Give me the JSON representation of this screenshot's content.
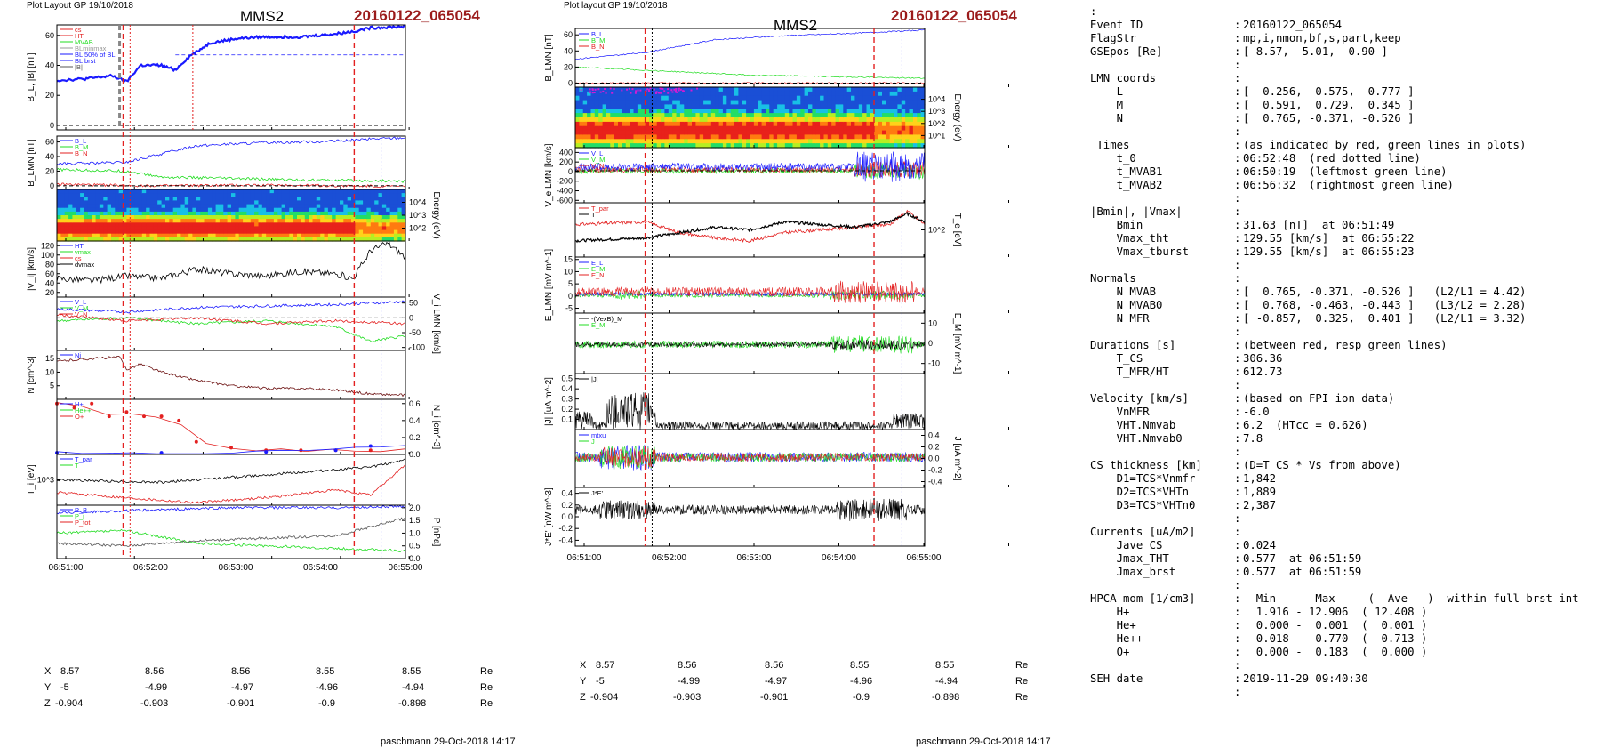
{
  "left_column": {
    "header": "Plot Layout GP 19/10/2018",
    "spacecraft": "MMS2",
    "event": "20160122_065054",
    "footer": "paschmann 29-Oct-2018 14:17",
    "time_ticks": [
      "06:51:00",
      "06:52:00",
      "06:53:00",
      "06:54:00",
      "06:55:00"
    ],
    "position_rows": [
      {
        "label": "X",
        "values": [
          "8.57",
          "8.56",
          "8.56",
          "8.55",
          "8.55"
        ],
        "unit": "Re"
      },
      {
        "label": "Y",
        "values": [
          "-5",
          "-4.99",
          "-4.97",
          "-4.96",
          "-4.94"
        ],
        "unit": "Re"
      },
      {
        "label": "Z",
        "values": [
          "-0.904",
          "-0.903",
          "-0.901",
          "-0.9",
          "-0.898"
        ],
        "unit": "Re"
      }
    ]
  },
  "right_column": {
    "header": "Plot layout GP 19/10/2018",
    "spacecraft": "MMS2",
    "event": "20160122_065054",
    "footer": "paschmann 29-Oct-2018 14:17",
    "time_ticks": [
      "06:51:00",
      "06:52:00",
      "06:53:00",
      "06:54:00",
      "06:55:00"
    ],
    "position_rows": [
      {
        "label": "X",
        "values": [
          "8.57",
          "8.56",
          "8.56",
          "8.55",
          "8.55"
        ],
        "unit": "Re"
      },
      {
        "label": "Y",
        "values": [
          "-5",
          "-4.99",
          "-4.97",
          "-4.96",
          "-4.94"
        ],
        "unit": "Re"
      },
      {
        "label": "Z",
        "values": [
          "-0.904",
          "-0.903",
          "-0.901",
          "-0.9",
          "-0.898"
        ],
        "unit": "Re"
      }
    ]
  },
  "colors": {
    "red": "#e32020",
    "blue": "#1a1aff",
    "green": "#22dd22",
    "black": "#000000",
    "brown": "#6b0f0f",
    "event": "#9b1b1b"
  },
  "chart_data": [
    {
      "type": "line",
      "column": "left",
      "panels": [
        {
          "ylabel": "B_L, |B| [nT]",
          "yticks": [
            "0",
            "20",
            "40",
            "60"
          ],
          "ylim": [
            -3,
            67
          ],
          "legend": [
            "cs",
            "HT",
            "MVAB",
            "BLminmax",
            "BL 50% of BL",
            "BL brst",
            "|B|"
          ],
          "series": [
            {
              "name": "|B|",
              "x": [
                0,
                0.08,
                0.16,
                0.2,
                0.24,
                0.3,
                0.34,
                0.38,
                0.44,
                0.52,
                0.6,
                0.7,
                0.8,
                0.86,
                0.9,
                1.0
              ],
              "y": [
                30,
                31,
                33,
                29,
                40,
                40,
                37,
                46,
                55,
                58,
                59,
                59,
                61,
                63,
                65,
                66
              ]
            }
          ]
        },
        {
          "ylabel": "B_LMN [nT]",
          "yticks": [
            "0",
            "20",
            "40",
            "60"
          ],
          "ylim": [
            -5,
            68
          ],
          "legend": [
            "B_L",
            "B_M",
            "B_N"
          ],
          "series": [
            {
              "name": "B_L",
              "x": [
                0,
                0.2,
                0.25,
                0.4,
                0.6,
                0.8,
                0.9,
                1.0
              ],
              "y": [
                30,
                32,
                38,
                55,
                59,
                61,
                64,
                66
              ]
            },
            {
              "name": "B_M",
              "x": [
                0,
                0.2,
                0.3,
                0.5,
                0.7,
                0.9,
                1.0
              ],
              "y": [
                22,
                20,
                12,
                10,
                8,
                7,
                6
              ]
            },
            {
              "name": "B_N",
              "x": [
                0,
                0.3,
                0.6,
                1.0
              ],
              "y": [
                2,
                0,
                1,
                -1
              ]
            }
          ]
        },
        {
          "type": "heatmap",
          "ylabel": "Energy (eV)",
          "yticks": [
            "10^2",
            "10^3",
            "10^4"
          ]
        },
        {
          "ylabel": "|V_i| [km/s]",
          "yticks": [
            "20",
            "40",
            "60",
            "80",
            "100",
            "120"
          ],
          "ylim": [
            10,
            130
          ],
          "legend": [
            "HT",
            "vmax",
            "cs",
            "dvmax"
          ],
          "series": [
            {
              "name": "|V_i|",
              "x": [
                0,
                0.1,
                0.2,
                0.3,
                0.4,
                0.5,
                0.6,
                0.7,
                0.8,
                0.85,
                0.9,
                0.95,
                1.0
              ],
              "y": [
                50,
                45,
                55,
                50,
                70,
                60,
                55,
                65,
                60,
                50,
                110,
                125,
                95
              ]
            }
          ]
        },
        {
          "ylabel": "V_i LMN [km/s]",
          "yticks": [
            "-100",
            "-50",
            "0",
            "50"
          ],
          "ylim": [
            -110,
            70
          ],
          "legend": [
            "V_L",
            "V_M",
            "V_N"
          ],
          "series": [
            {
              "name": "V_L",
              "x": [
                0,
                0.2,
                0.4,
                0.6,
                0.8,
                1.0
              ],
              "y": [
                30,
                20,
                35,
                40,
                45,
                55
              ]
            },
            {
              "name": "V_M",
              "x": [
                0,
                0.2,
                0.4,
                0.6,
                0.8,
                0.9,
                1.0
              ],
              "y": [
                -10,
                0,
                -20,
                -10,
                -30,
                -80,
                -60
              ]
            },
            {
              "name": "V_N",
              "x": [
                0,
                0.2,
                0.4,
                0.6,
                0.8,
                1.0
              ],
              "y": [
                10,
                -10,
                0,
                -20,
                -10,
                -20
              ]
            }
          ]
        },
        {
          "ylabel": "N [cm^-3]",
          "yticks": [
            "5",
            "10",
            "15"
          ],
          "ylim": [
            0,
            18
          ],
          "legend": [
            "Ni"
          ],
          "series": [
            {
              "name": "Ni",
              "x": [
                0,
                0.1,
                0.18,
                0.2,
                0.24,
                0.3,
                0.4,
                0.5,
                0.6,
                0.7,
                0.8,
                0.9,
                1.0
              ],
              "y": [
                14,
                15,
                15.5,
                11,
                13,
                10,
                7,
                5,
                4,
                4,
                3.5,
                2,
                1.5
              ]
            }
          ]
        },
        {
          "ylabel": "N_i [cm^-3]",
          "yticks": [
            "0.0",
            "0.2",
            "0.4",
            "0.6"
          ],
          "ylim": [
            0,
            0.65
          ],
          "legend": [
            "H+",
            "He++",
            "O+"
          ],
          "series": [
            {
              "name": "He++",
              "x": [
                0,
                0.05,
                0.1,
                0.15,
                0.2,
                0.25,
                0.3,
                0.35,
                0.4,
                0.5,
                0.6,
                0.7,
                0.8,
                0.9
              ],
              "y": [
                0.6,
                0.55,
                0.6,
                0.45,
                0.5,
                0.45,
                0.45,
                0.4,
                0.15,
                0.08,
                0.05,
                0.05,
                0.05,
                0.05
              ]
            },
            {
              "name": "O+",
              "x": [
                0,
                0.3,
                0.6,
                0.8,
                0.9
              ],
              "y": [
                0.02,
                0.02,
                0.03,
                0.05,
                0.1
              ]
            }
          ]
        },
        {
          "ylabel": "T_i [eV]",
          "yticks": [
            "10^3"
          ],
          "ylim": [
            0,
            1
          ],
          "legend": [
            "T_par",
            "T"
          ],
          "series": [
            {
              "name": "T",
              "x": [
                0,
                0.3,
                0.6,
                0.9,
                1.0
              ],
              "y": [
                0.5,
                0.45,
                0.6,
                0.75,
                0.9
              ]
            },
            {
              "name": "T_par",
              "x": [
                0,
                0.2,
                0.4,
                0.6,
                0.8,
                0.9,
                1.0
              ],
              "y": [
                0.25,
                0.15,
                0.05,
                0.15,
                0.3,
                0.2,
                0.8
              ]
            }
          ]
        },
        {
          "ylabel": "P [nPa]",
          "yticks": [
            "0.0",
            "0.5",
            "1.0",
            "1.5",
            "2.0"
          ],
          "ylim": [
            0,
            2.1
          ],
          "legend": [
            "P_B",
            "P_i",
            "P_tot"
          ],
          "series": [
            {
              "name": "P_B",
              "x": [
                0,
                0.25,
                0.5,
                0.8,
                1.0
              ],
              "y": [
                1.8,
                1.9,
                2.0,
                2.0,
                2.05
              ]
            },
            {
              "name": "P_i",
              "x": [
                0,
                0.2,
                0.4,
                0.6,
                0.8,
                1.0
              ],
              "y": [
                1.0,
                1.1,
                0.6,
                0.5,
                0.4,
                0.3
              ]
            },
            {
              "name": "P_tot",
              "x": [
                0,
                0.2,
                0.4,
                0.6,
                0.8,
                1.0
              ],
              "y": [
                0.6,
                0.5,
                0.7,
                0.8,
                0.9,
                1.6
              ]
            }
          ]
        }
      ]
    },
    {
      "type": "line",
      "column": "right",
      "panels": [
        {
          "ylabel": "B_LMN [nT]",
          "yticks": [
            "0",
            "20",
            "40",
            "60"
          ],
          "ylim": [
            -5,
            68
          ],
          "legend": [
            "B_L",
            "B_M",
            "B_N"
          ],
          "series": [
            {
              "name": "B_L",
              "x": [
                0,
                0.2,
                0.4,
                0.6,
                0.8,
                1.0
              ],
              "y": [
                30,
                38,
                54,
                59,
                62,
                66
              ]
            },
            {
              "name": "B_M",
              "x": [
                0,
                0.5,
                1.0
              ],
              "y": [
                20,
                10,
                6
              ]
            }
          ]
        },
        {
          "type": "heatmap",
          "ylabel": "Energy (eV)",
          "yticks": [
            "10^1",
            "10^2",
            "10^3",
            "10^4"
          ]
        },
        {
          "ylabel": "V_e LMN [km/s]",
          "yticks": [
            "-600",
            "-400",
            "-200",
            "0",
            "200",
            "400"
          ],
          "ylim": [
            -650,
            500
          ],
          "legend": [
            "V_L",
            "V_M",
            "V_N"
          ]
        },
        {
          "ylabel": "T_e [eV]",
          "yticks": [
            "10^2"
          ],
          "legend": [
            "T_par",
            "T"
          ]
        },
        {
          "ylabel": "E_LMN [mV m^-1]",
          "yticks": [
            "-5",
            "0",
            "5",
            "10",
            "15"
          ],
          "ylim": [
            -7,
            16
          ],
          "legend": [
            "E_L",
            "E_M",
            "E_N"
          ]
        },
        {
          "ylabel": "E_M [mV m^-1]",
          "yticks": [
            "-10",
            "0",
            "10"
          ],
          "ylim": [
            -15,
            15
          ],
          "legend": [
            "-(VexB)_M",
            "E_M"
          ]
        },
        {
          "ylabel": "|J| [uA m^-2]",
          "yticks": [
            "0.1",
            "0.2",
            "0.3",
            "0.4",
            "0.5"
          ],
          "ylim": [
            0,
            0.55
          ],
          "legend": [
            "|J|"
          ]
        },
        {
          "ylabel": "J [uA m^-2]",
          "yticks": [
            "-0.4",
            "-0.2",
            "0.0",
            "0.2",
            "0.4"
          ],
          "ylim": [
            -0.5,
            0.5
          ],
          "legend": [
            "mtxu",
            "J"
          ]
        },
        {
          "ylabel": "J*E' [nW m^-3]",
          "yticks": [
            "-0.4",
            "-0.2",
            "0.0",
            "0.2",
            "0.4"
          ],
          "ylim": [
            -0.5,
            0.5
          ],
          "legend": [
            "J*E'"
          ]
        }
      ]
    }
  ],
  "summary": {
    "colon_line": ":",
    "rows": [
      {
        "key": "Event ID",
        "val": "20160122_065054"
      },
      {
        "key": "FlagStr",
        "val": "mp,i,nmon,bf,s,part,keep"
      },
      {
        "key": "GSEpos [Re]",
        "val": "[ 8.57, -5.01, -0.90 ]"
      },
      {
        "key": "",
        "val": ""
      },
      {
        "key": "LMN coords",
        "val": ""
      },
      {
        "key": "    L",
        "val": "[  0.256, -0.575,  0.777 ]"
      },
      {
        "key": "    M",
        "val": "[  0.591,  0.729,  0.345 ]"
      },
      {
        "key": "    N",
        "val": "[  0.765, -0.371, -0.526 ]"
      },
      {
        "key": "",
        "val": ""
      },
      {
        "key": " Times",
        "val": "(as indicated by red, green lines in plots)"
      },
      {
        "key": "    t_0",
        "val": "06:52:48  (red dotted line)"
      },
      {
        "key": "    t_MVAB1",
        "val": "06:50:19  (leftmost green line)"
      },
      {
        "key": "    t_MVAB2",
        "val": "06:56:32  (rightmost green line)"
      },
      {
        "key": "",
        "val": ""
      },
      {
        "key": "|Bmin|, |Vmax|",
        "val": ""
      },
      {
        "key": "    Bmin",
        "val": "31.63 [nT]  at 06:51:49"
      },
      {
        "key": "    Vmax_tht",
        "val": "129.55 [km/s]  at 06:55:22"
      },
      {
        "key": "    Vmax_tburst",
        "val": "129.55 [km/s]  at 06:55:23"
      },
      {
        "key": "",
        "val": ""
      },
      {
        "key": "Normals",
        "val": ""
      },
      {
        "key": "    N MVAB",
        "val": "[  0.765, -0.371, -0.526 ]   (L2/L1 = 4.42)"
      },
      {
        "key": "    N MVAB0",
        "val": "[  0.768, -0.463, -0.443 ]   (L3/L2 = 2.28)"
      },
      {
        "key": "    N MFR",
        "val": "[ -0.857,  0.325,  0.401 ]   (L2/L1 = 3.32)"
      },
      {
        "key": "",
        "val": ""
      },
      {
        "key": "Durations [s]",
        "val": "(between red, resp green lines)"
      },
      {
        "key": "    T_CS",
        "val": "306.36"
      },
      {
        "key": "    T_MFR/HT",
        "val": "612.73"
      },
      {
        "key": "",
        "val": ""
      },
      {
        "key": "Velocity [km/s]",
        "val": "(based on FPI ion data)"
      },
      {
        "key": "    VnMFR",
        "val": "-6.0"
      },
      {
        "key": "    VHT.Nmvab",
        "val": "6.2  (HTcc = 0.626)"
      },
      {
        "key": "    VHT.Nmvab0",
        "val": "7.8"
      },
      {
        "key": "",
        "val": ""
      },
      {
        "key": "CS thickness [km]",
        "val": "(D=T_CS * Vs from above)"
      },
      {
        "key": "    D1=TCS*Vnmfr",
        "val": "1,842"
      },
      {
        "key": "    D2=TCS*VHTn",
        "val": "1,889"
      },
      {
        "key": "    D3=TCS*VHTn0",
        "val": "2,387"
      },
      {
        "key": "",
        "val": ""
      },
      {
        "key": "Currents [uA/m2]",
        "val": ""
      },
      {
        "key": "    Jave_CS",
        "val": "0.024"
      },
      {
        "key": "    Jmax_THT",
        "val": "0.577  at 06:51:59"
      },
      {
        "key": "    Jmax_brst",
        "val": "0.577  at 06:51:59"
      },
      {
        "key": "",
        "val": ""
      },
      {
        "key": "HPCA mom [1/cm3]",
        "val": "  Min   -  Max     (  Ave   )  within full brst int"
      },
      {
        "key": "    H+",
        "val": "  1.916 - 12.906  ( 12.408 )"
      },
      {
        "key": "    He+",
        "val": "  0.000 -  0.001  (  0.001 )"
      },
      {
        "key": "    He++",
        "val": "  0.018 -  0.770  (  0.713 )"
      },
      {
        "key": "    O+",
        "val": "  0.000 -  0.183  (  0.000 )"
      },
      {
        "key": "",
        "val": ""
      },
      {
        "key": "SEH date",
        "val": "2019-11-29 09:40:30"
      },
      {
        "key": "",
        "val": ""
      }
    ]
  }
}
